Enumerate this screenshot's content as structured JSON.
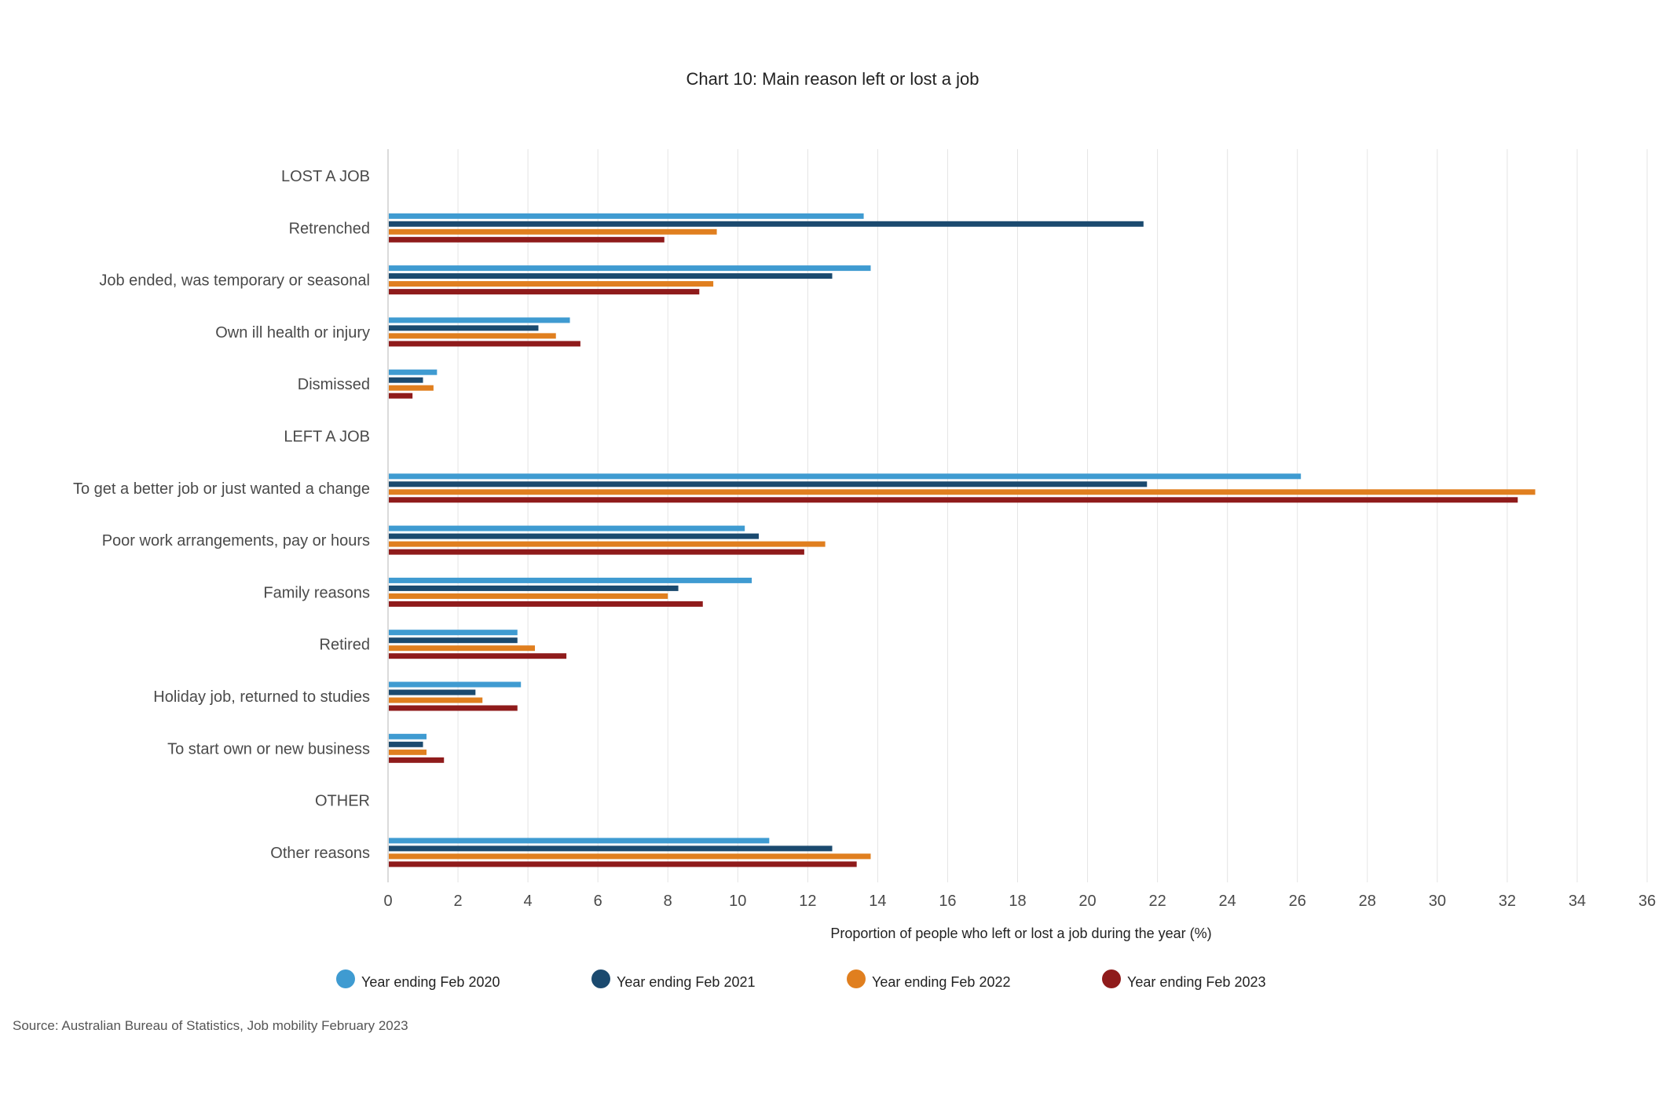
{
  "chart_data": {
    "type": "bar",
    "orientation": "horizontal",
    "title": "Chart 10: Main reason left or lost a job",
    "xlabel": "Proportion of people who left or lost a job during the year (%)",
    "ylabel": "",
    "xlim": [
      0,
      36
    ],
    "xticks": [
      "0",
      "2",
      "4",
      "6",
      "8",
      "10",
      "12",
      "14",
      "16",
      "18",
      "20",
      "22",
      "24",
      "26",
      "28",
      "30",
      "32",
      "34",
      "36"
    ],
    "grid": "vertical",
    "legend_position": "bottom",
    "categories": [
      "LOST A JOB",
      "Retrenched",
      "Job ended, was temporary or seasonal",
      "Own ill health or injury",
      "Dismissed",
      "LEFT A JOB",
      "To get a better job or just wanted a change",
      "Poor work arrangements, pay or hours",
      "Family reasons",
      "Retired",
      "Holiday job, returned to studies",
      "To start own or new business",
      "OTHER",
      "Other reasons"
    ],
    "series": [
      {
        "name": "Year ending Feb 2020",
        "color": "#3f9bd1",
        "values": [
          null,
          13.6,
          13.8,
          5.2,
          1.4,
          null,
          26.1,
          10.2,
          10.4,
          3.7,
          3.8,
          1.1,
          null,
          10.9
        ]
      },
      {
        "name": "Year ending Feb 2021",
        "color": "#1b4a6f",
        "values": [
          null,
          21.6,
          12.7,
          4.3,
          1.0,
          null,
          21.7,
          10.6,
          8.3,
          3.7,
          2.5,
          1.0,
          null,
          12.7
        ]
      },
      {
        "name": "Year ending Feb 2022",
        "color": "#e07f1f",
        "values": [
          null,
          9.4,
          9.3,
          4.8,
          1.3,
          null,
          32.8,
          12.5,
          8.0,
          4.2,
          2.7,
          1.1,
          null,
          13.8
        ]
      },
      {
        "name": "Year ending Feb 2023",
        "color": "#8f1b1b",
        "values": [
          null,
          7.9,
          8.9,
          5.5,
          0.7,
          null,
          32.3,
          11.9,
          9.0,
          5.1,
          3.7,
          1.6,
          null,
          13.4
        ]
      }
    ]
  },
  "source": "Source: Australian Bureau of Statistics, Job mobility February 2023"
}
